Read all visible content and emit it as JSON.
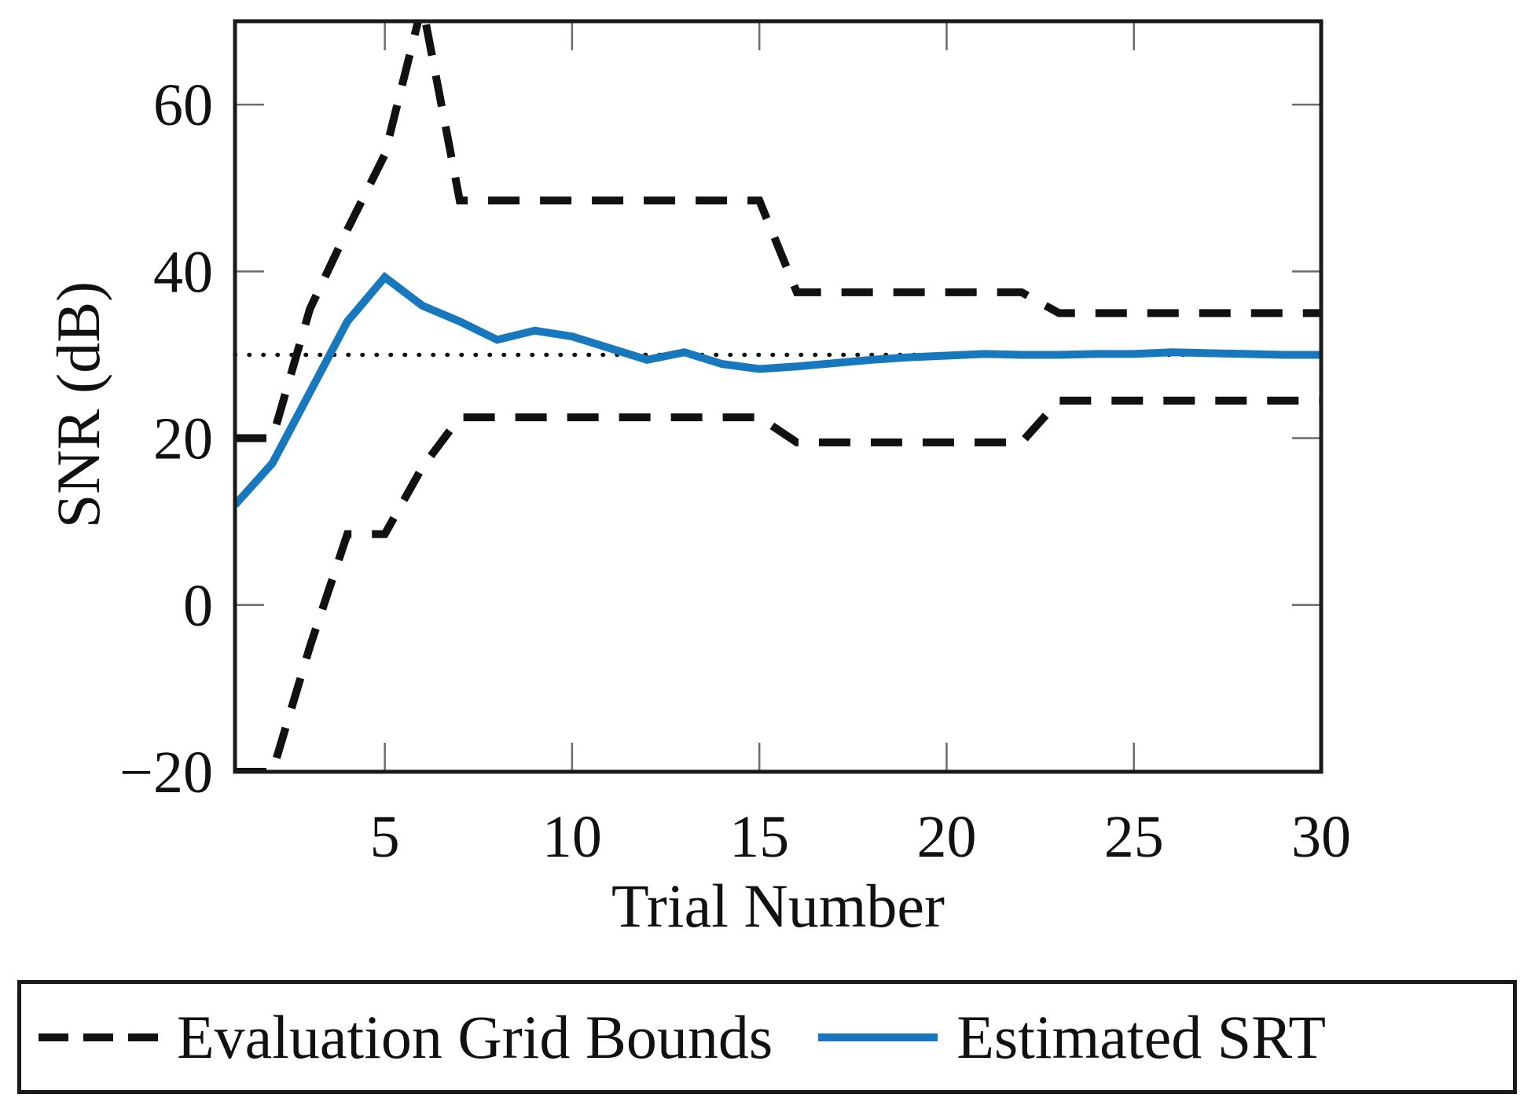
{
  "figure": {
    "background": "#ffffff",
    "accent_blue": "#1878bd",
    "line_black": "#111111"
  },
  "axes": {
    "x_label": "Trial Number",
    "y_label": "SNR (dB)"
  },
  "legend": {
    "items": [
      {
        "label": "Evaluation Grid Bounds",
        "swatch": "dashed-black-line"
      },
      {
        "label": "Estimated SRT",
        "swatch": "solid-blue-line"
      }
    ]
  },
  "chart_data": {
    "type": "line",
    "title": "",
    "xlabel": "Trial Number",
    "ylabel": "SNR (dB)",
    "xlim": [
      1,
      30
    ],
    "ylim": [
      -20,
      70
    ],
    "grid": false,
    "legend_position": "below",
    "xticks": {
      "values": [
        5,
        10,
        15,
        20,
        25,
        30
      ],
      "labels": [
        "5",
        "10",
        "15",
        "20",
        "25",
        "30"
      ]
    },
    "yticks": {
      "values": [
        60,
        40,
        20,
        0,
        -20
      ],
      "labels": [
        "60",
        "40",
        "20",
        "0",
        "−20"
      ]
    },
    "x": [
      1,
      2,
      3,
      4,
      5,
      6,
      7,
      8,
      9,
      10,
      11,
      12,
      13,
      14,
      15,
      16,
      17,
      18,
      19,
      20,
      21,
      22,
      23,
      24,
      25,
      26,
      27,
      28,
      29,
      30
    ],
    "series": [
      {
        "name": "Evaluation Grid Bounds (upper)",
        "style": "dashed",
        "color": "#111111",
        "values": [
          20,
          20,
          35.5,
          45,
          54,
          72,
          48.5,
          48.5,
          48.5,
          48.5,
          48.5,
          48.5,
          48.5,
          48.5,
          48.5,
          37.5,
          37.5,
          37.5,
          37.5,
          37.5,
          37.5,
          37.5,
          35,
          35,
          35,
          35,
          35,
          35,
          35,
          35
        ]
      },
      {
        "name": "Evaluation Grid Bounds (lower)",
        "style": "dashed",
        "color": "#111111",
        "values": [
          -20,
          -20,
          -5,
          8.5,
          8.5,
          16.5,
          22.5,
          22.5,
          22.5,
          22.5,
          22.5,
          22.5,
          22.5,
          22.5,
          22.5,
          19.5,
          19.5,
          19.5,
          19.5,
          19.5,
          19.5,
          19.5,
          24.5,
          24.5,
          24.5,
          24.5,
          24.5,
          24.5,
          24.5,
          24.5
        ]
      },
      {
        "name": "Estimated SRT",
        "style": "solid",
        "color": "#1878bd",
        "values": [
          12,
          17,
          25.5,
          34,
          39.3,
          35.9,
          34,
          31.8,
          32.9,
          32.2,
          30.8,
          29.4,
          30.3,
          28.9,
          28.3,
          28.6,
          29,
          29.4,
          29.7,
          29.9,
          30.1,
          30,
          30,
          30.1,
          30.1,
          30.3,
          30.2,
          30.1,
          30,
          30
        ]
      }
    ],
    "reference_line": {
      "y": 30,
      "style": "dotted",
      "color": "#111111"
    }
  }
}
